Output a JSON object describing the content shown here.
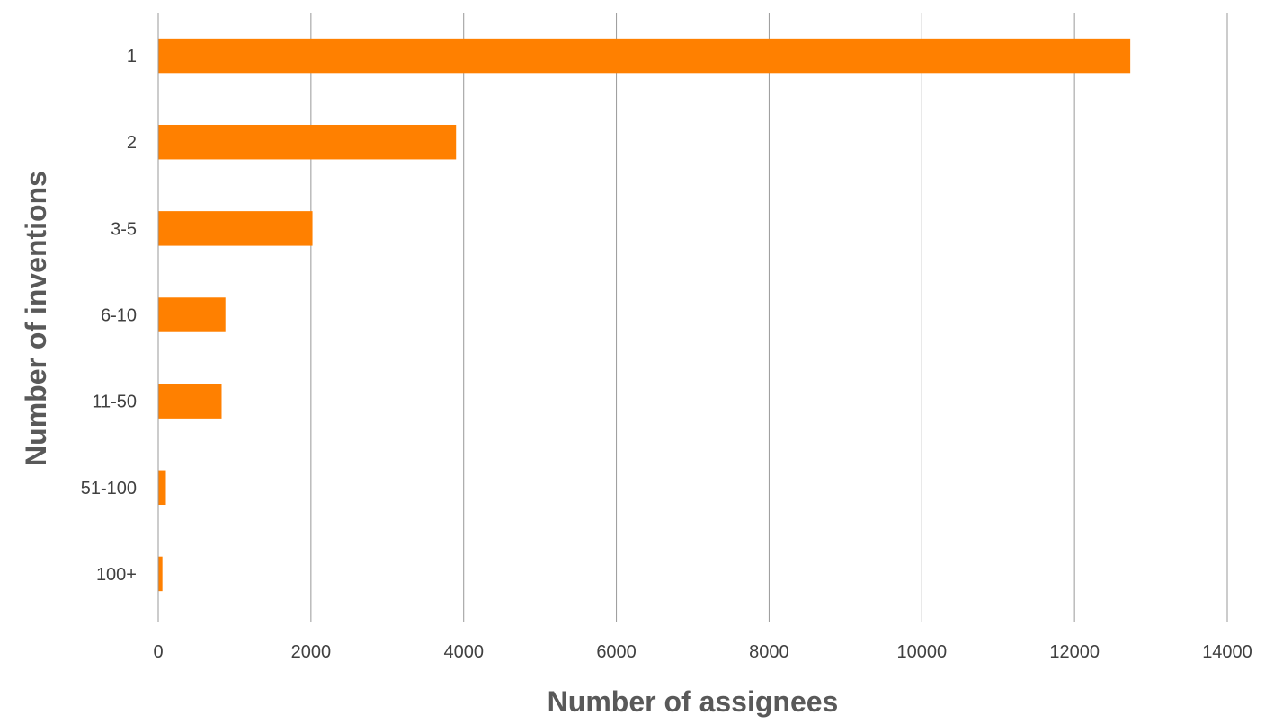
{
  "chart_data": {
    "type": "bar",
    "orientation": "horizontal",
    "categories": [
      "1",
      "2",
      "3-5",
      "6-10",
      "11-50",
      "51-100",
      "100+"
    ],
    "values": [
      12730,
      3900,
      2020,
      880,
      830,
      100,
      55
    ],
    "xlabel": "Number of assignees",
    "ylabel": "Number of inventions",
    "xlim": [
      0,
      14000
    ],
    "xticks": [
      0,
      2000,
      4000,
      6000,
      8000,
      10000,
      12000,
      14000
    ],
    "grid": "vertical",
    "legend": "none",
    "bar_color": "#ff8000",
    "grid_color": "#999999"
  }
}
